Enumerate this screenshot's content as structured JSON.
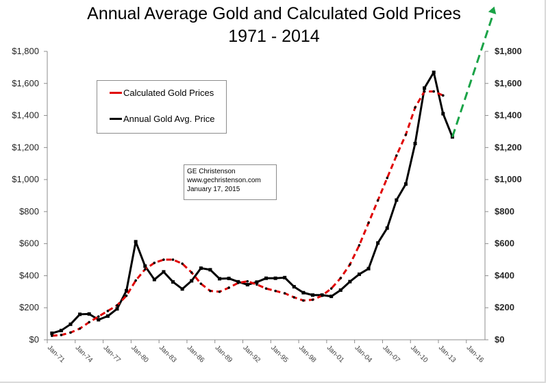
{
  "chart_data": {
    "type": "line",
    "title": "Annual Average Gold and Calculated Gold Prices",
    "subtitle": "1971 - 2014",
    "xlabel": "",
    "ylabel": "",
    "ylim": [
      0,
      1800
    ],
    "xlim": [
      1971,
      2018
    ],
    "grid": false,
    "y_ticks": [
      "$0",
      "$200",
      "$400",
      "$600",
      "$800",
      "$1,000",
      "$1,200",
      "$1,400",
      "$1,600",
      "$1,800"
    ],
    "y_tick_values": [
      0,
      200,
      400,
      600,
      800,
      1000,
      1200,
      1400,
      1600,
      1800
    ],
    "x_ticks": [
      "Jan-71",
      "Jan-74",
      "Jan-77",
      "Jan-80",
      "Jan-83",
      "Jan-86",
      "Jan-89",
      "Jan-92",
      "Jan-95",
      "Jan-98",
      "Jan-01",
      "Jan-04",
      "Jan-07",
      "Jan-10",
      "Jan-13",
      "Jan-16"
    ],
    "x_tick_values": [
      1971,
      1974,
      1977,
      1980,
      1983,
      1986,
      1989,
      1992,
      1995,
      1998,
      2001,
      2004,
      2007,
      2010,
      2013,
      2016
    ],
    "x": [
      1971,
      1972,
      1973,
      1974,
      1975,
      1976,
      1977,
      1978,
      1979,
      1980,
      1981,
      1982,
      1983,
      1984,
      1985,
      1986,
      1987,
      1988,
      1989,
      1990,
      1991,
      1992,
      1993,
      1994,
      1995,
      1996,
      1997,
      1998,
      1999,
      2000,
      2001,
      2002,
      2003,
      2004,
      2005,
      2006,
      2007,
      2008,
      2009,
      2010,
      2011,
      2012,
      2013,
      2014
    ],
    "series": [
      {
        "name": "Calculated Gold Prices",
        "color": "#e00000",
        "style": "dashed",
        "values": [
          25,
          30,
          45,
          70,
          110,
          145,
          180,
          215,
          275,
          370,
          440,
          480,
          500,
          500,
          475,
          420,
          350,
          305,
          300,
          325,
          355,
          365,
          345,
          320,
          305,
          290,
          265,
          245,
          250,
          275,
          320,
          385,
          470,
          590,
          730,
          870,
          1010,
          1150,
          1280,
          1450,
          1550,
          1550,
          1525,
          null
        ]
      },
      {
        "name": "Annual Gold Avg. Price",
        "color": "#000000",
        "style": "solid",
        "values": [
          41,
          58,
          97,
          159,
          161,
          125,
          148,
          193,
          306,
          612,
          460,
          376,
          424,
          361,
          317,
          368,
          447,
          437,
          381,
          383,
          362,
          344,
          360,
          384,
          384,
          388,
          331,
          294,
          279,
          279,
          271,
          310,
          363,
          409,
          444,
          604,
          697,
          872,
          972,
          1225,
          1571,
          1669,
          1411,
          1266
        ]
      },
      {
        "name": "Projection",
        "color": "#1aa347",
        "style": "dashed",
        "values_xy": [
          [
            2014,
            1266
          ],
          [
            2018.5,
            2080
          ]
        ]
      }
    ],
    "legend": {
      "placement": "top-left",
      "entries": [
        "Calculated Gold Prices",
        "Annual Gold Avg. Price"
      ]
    },
    "annotations": [
      "GE Christenson",
      "www.gechristenson.com",
      "January 17, 2015"
    ]
  },
  "legend": {
    "calc_label": "Calculated Gold Prices",
    "avg_label": "Annual Gold Avg. Price"
  },
  "note": {
    "line1": "GE Christenson",
    "line2": "www.gechristenson.com",
    "line3": "January 17, 2015"
  },
  "colors": {
    "calc": "#e00000",
    "avg": "#000000",
    "projection": "#1aa347",
    "axis": "#8c8c8c"
  }
}
